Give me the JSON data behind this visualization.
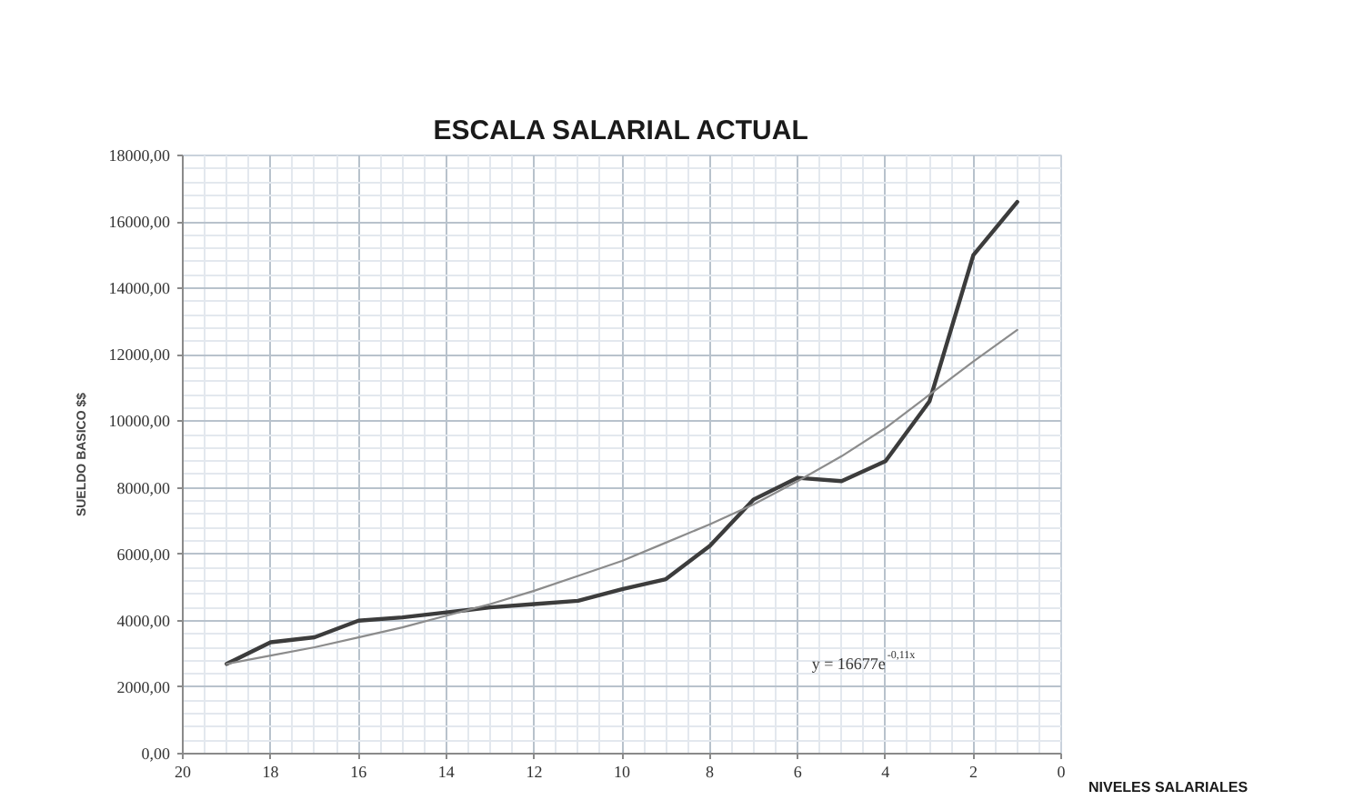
{
  "chart_data": {
    "type": "line",
    "title": "ESCALA SALARIAL ACTUAL",
    "xlabel": "NIVELES SALARIALES",
    "ylabel": "SUELDO BASICO $$",
    "x": [
      19,
      18,
      17,
      16,
      15,
      14,
      13,
      12,
      11,
      10,
      9,
      8,
      7,
      6,
      5,
      4,
      3,
      2,
      1
    ],
    "series": [
      {
        "color": "#3c3c3c",
        "values": [
          2700,
          3350,
          3500,
          4000,
          4100,
          4250,
          4400,
          4500,
          4600,
          4950,
          5250,
          6250,
          7650,
          8300,
          8200,
          8800,
          10600,
          15000,
          16600
        ]
      },
      {
        "type": "line",
        "color": "#8c8c8c",
        "x": [
          19,
          18,
          17,
          16,
          15,
          14,
          13,
          12,
          11,
          10,
          9,
          8,
          7,
          6,
          5,
          4,
          3,
          2,
          1
        ],
        "values": [
          2700,
          2950,
          3200,
          3500,
          3800,
          4150,
          4500,
          4900,
          5350,
          5800,
          6350,
          6900,
          7500,
          8200,
          8950,
          9800,
          10800,
          11800,
          12750
        ]
      }
    ],
    "xlim": [
      20,
      0
    ],
    "xticks": [
      20,
      18,
      16,
      14,
      12,
      10,
      8,
      6,
      4,
      2,
      0
    ],
    "ylim": [
      0,
      18000
    ],
    "yticks": [
      {
        "value": 0,
        "label": "0,00"
      },
      {
        "value": 2000,
        "label": "2000,00"
      },
      {
        "value": 4000,
        "label": "4000,00"
      },
      {
        "value": 6000,
        "label": "6000,00"
      },
      {
        "value": 8000,
        "label": "8000,00"
      },
      {
        "value": 10000,
        "label": "10000,00"
      },
      {
        "value": 12000,
        "label": "12000,00"
      },
      {
        "value": 14000,
        "label": "14000,00"
      },
      {
        "value": 16000,
        "label": "16000,00"
      },
      {
        "value": 18000,
        "label": "18000,00"
      }
    ],
    "grid": true,
    "annotations": [
      "y = 16677e$^{-0,11x}$"
    ]
  }
}
